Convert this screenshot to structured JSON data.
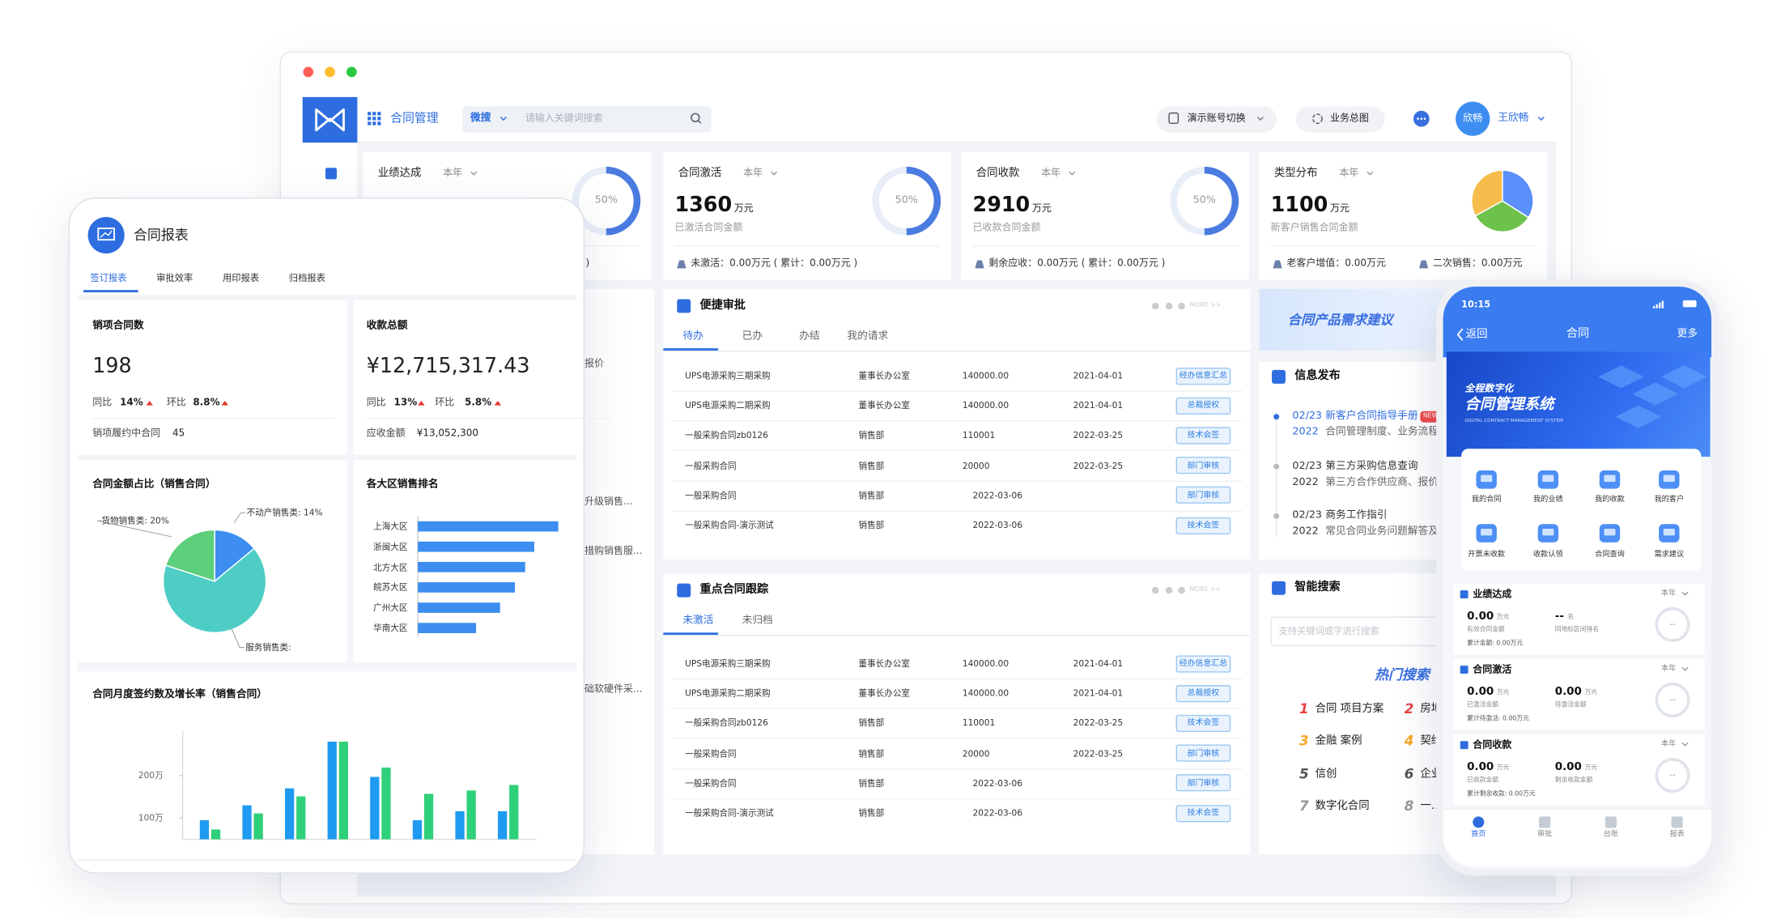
{
  "topbar": {
    "app_name": "合同管理",
    "search_scope": "微搜",
    "search_placeholder": "请输入关键词搜索",
    "account_switch": "演示账号切换",
    "overview": "业务总图",
    "avatar": "欣畅",
    "user_name": "王欣畅"
  },
  "kpi_cards": [
    {
      "title": "业绩达成",
      "period": "本年",
      "gauge": {
        "value": 50,
        "label": "50%"
      },
      "footer": [
        ")"
      ]
    },
    {
      "title": "合同激活",
      "period": "本年",
      "amount": 1360,
      "unit": "万元",
      "caption": "已激活合同金额",
      "gauge": {
        "value": 50,
        "label": "50%"
      },
      "footer": [
        "未激活：0.00万元 ( 累计：0.00万元 )"
      ]
    },
    {
      "title": "合同收款",
      "period": "本年",
      "amount": 2910,
      "unit": "万元",
      "caption": "已收款合同金额",
      "gauge": {
        "value": 50,
        "label": "50%"
      },
      "footer": [
        "剩余应收：0.00万元 ( 累计：0.00万元 )"
      ]
    },
    {
      "title": "类型分布",
      "period": "本年",
      "amount": 1100,
      "unit": "万元",
      "caption": "新客户销售合同金额",
      "pie": {
        "type": "pie",
        "values": [
          34,
          33,
          33
        ],
        "colors": [
          "#5b8ff9",
          "#6cc24a",
          "#f6bd4d"
        ]
      },
      "footer": [
        "老客户增值：0.00万元",
        "二次销售：0.00万元"
      ]
    }
  ],
  "left_panel_fragments": [
    "报价",
    "升级销售...",
    "措购销售服...",
    "础软硬件采..."
  ],
  "approval": {
    "title": "便捷审批",
    "more": "MORE >>",
    "tabs": [
      "待办",
      "已办",
      "办结",
      "我的请求"
    ],
    "rows": [
      [
        "UPS电源采购三期采购",
        "董事长办公室",
        "140000.00",
        "2021-04-01",
        "经办信息汇总"
      ],
      [
        "UPS电源采购二期采购",
        "董事长办公室",
        "140000.00",
        "2021-04-01",
        "总裁授权"
      ],
      [
        "一般采购合同zb0126",
        "销售部",
        "110001",
        "2022-03-25",
        "技术会签"
      ],
      [
        "一般采购合同",
        "销售部",
        "20000",
        "2022-03-25",
        "部门审核"
      ],
      [
        "一般采购合同",
        "销售部",
        "2022-03-06",
        "部门审核"
      ],
      [
        "一般采购合同-演示测试",
        "销售部",
        "2022-03-06",
        "技术会签"
      ]
    ]
  },
  "tracking": {
    "title": "重点合同跟踪",
    "more": "MORE >>",
    "tabs": [
      "未激活",
      "未归档"
    ],
    "rows": [
      [
        "UPS电源采购三期采购",
        "董事长办公室",
        "140000.00",
        "2021-04-01",
        "经办信息汇总"
      ],
      [
        "UPS电源采购二期采购",
        "董事长办公室",
        "140000.00",
        "2021-04-01",
        "总裁授权"
      ],
      [
        "一般采购合同zb0126",
        "销售部",
        "110001",
        "2022-03-25",
        "技术会签"
      ],
      [
        "一般采购合同",
        "销售部",
        "20000",
        "2022-03-25",
        "部门审核"
      ],
      [
        "一般采购合同",
        "销售部",
        "2022-03-06",
        "部门审核"
      ],
      [
        "一般采购合同-演示测试",
        "销售部",
        "2022-03-06",
        "技术会签"
      ]
    ]
  },
  "banner": "合同产品需求建议",
  "news": {
    "title": "信息发布",
    "items": [
      {
        "date": "02/23",
        "year": "2022",
        "title": "新客户合同指导手册",
        "badge": "NEW",
        "summary": "合同管理制度、业务流程"
      },
      {
        "date": "02/23",
        "year": "2022",
        "title": "第三方采购信息查询",
        "summary": "第三方合作供应商、报价"
      },
      {
        "date": "02/23",
        "year": "2022",
        "title": "商务工作指引",
        "summary": "常见合同业务问题解答及"
      }
    ]
  },
  "search": {
    "title": "智能搜索",
    "placeholder": "支持关键词或字进行搜索",
    "hot_title": "热门搜索",
    "hot": [
      {
        "rank": 1,
        "text": "合同 项目方案"
      },
      {
        "rank": 2,
        "text": "房地"
      },
      {
        "rank": 3,
        "text": "金融 案例"
      },
      {
        "rank": 4,
        "text": "契约"
      },
      {
        "rank": 5,
        "text": "信创"
      },
      {
        "rank": 6,
        "text": "企业"
      },
      {
        "rank": 7,
        "text": "数字化合同"
      },
      {
        "rank": 8,
        "text": "一…"
      }
    ]
  },
  "tablet": {
    "title": "合同报表",
    "tabs": [
      "签订报表",
      "审批效率",
      "用印报表",
      "归档报表"
    ],
    "count_card": {
      "title": "销项合同数",
      "value": 198,
      "yoy_label": "同比",
      "yoy": "14%",
      "mom_label": "环比",
      "mom": "8.8%",
      "sub_label": "销项履约中合同",
      "sub_value": 45
    },
    "amount_card": {
      "title": "收款总额",
      "value": "¥12,715,317.43",
      "yoy_label": "同比",
      "yoy": "13%",
      "mom_label": "环比",
      "mom": "5.8%",
      "sub_label": "应收金额",
      "sub_value": "¥13,052,300"
    },
    "pie_chart": {
      "type": "pie",
      "title": "合同金额占比（销售合同）",
      "labels": [
        "不动产销售类: 14%",
        "服务销售类:",
        "货物销售类: 20%"
      ],
      "values": [
        14,
        66,
        20
      ],
      "colors": [
        "#3d8ef0",
        "#4ecdc4",
        "#5ccf7a"
      ]
    },
    "region_chart": {
      "type": "bar",
      "title": "各大区销售排名",
      "categories": [
        "上海大区",
        "浙闽大区",
        "北方大区",
        "皖苏大区",
        "广州大区",
        "华南大区"
      ],
      "values": [
        123,
        102,
        94,
        85,
        72,
        51
      ],
      "xlim": [
        0,
        130
      ],
      "color": "#3d8ef0"
    },
    "monthly_chart": {
      "type": "bar",
      "title": "合同月度签约数及增长率（销售合同）",
      "ylim": [
        50,
        280
      ],
      "yticks": [
        {
          "value": 100,
          "label": "100万"
        },
        {
          "value": 200,
          "label": "200万"
        }
      ],
      "series": [
        {
          "color": "#1e9bf0",
          "values": [
            95,
            130,
            170,
            280,
            197,
            95,
            116,
            116
          ]
        },
        {
          "color": "#2fd07a",
          "values": [
            73,
            111,
            151,
            280,
            219,
            157,
            165,
            178
          ]
        }
      ]
    }
  },
  "phone": {
    "time": "10:15",
    "back": "返回",
    "title": "合同",
    "more": "更多",
    "banner": {
      "line1": "全程数字化",
      "line2": "合同管理系统",
      "line3": "DIGITAL CONTRACT MANAGEMENT SYSTEM"
    },
    "shortcuts": [
      "我的合同",
      "我的业绩",
      "我的收款",
      "我的客户",
      "开票未收款",
      "收款认领",
      "合同查询",
      "需求建议"
    ],
    "sections": [
      {
        "title": "业绩达成",
        "period": "本年",
        "metrics": [
          {
            "value": "0.00",
            "unit": "万元",
            "caption": "有效合同金额"
          },
          {
            "value": "--",
            "unit": "名",
            "caption": "同地标区间排名"
          }
        ],
        "footer": "累计金额: 0.00万元",
        "gauge": "--"
      },
      {
        "title": "合同激活",
        "period": "本年",
        "metrics": [
          {
            "value": "0.00",
            "unit": "万元",
            "caption": "已激活金额"
          },
          {
            "value": "0.00",
            "unit": "万元",
            "caption": "待激活金额"
          }
        ],
        "footer": "累计待激活: 0.00万元",
        "gauge": "--"
      },
      {
        "title": "合同收款",
        "period": "本年",
        "metrics": [
          {
            "value": "0.00",
            "unit": "万元",
            "caption": "已收款金额"
          },
          {
            "value": "0.00",
            "unit": "万元",
            "caption": "剩余收款金额"
          }
        ],
        "footer": "累计剩余收款: 0.00万元",
        "gauge": "--"
      }
    ],
    "tabbar": [
      "首页",
      "审批",
      "台账",
      "报表"
    ]
  }
}
